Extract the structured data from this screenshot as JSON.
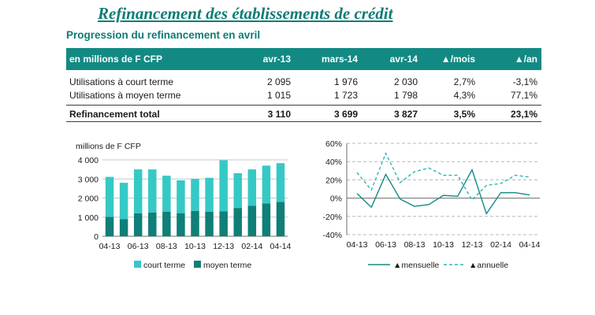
{
  "title": "Refinancement des établissements de crédit",
  "subtitle": "Progression du refinancement en avril",
  "table": {
    "headers": [
      "en millions de F CFP",
      "avr-13",
      "mars-14",
      "avr-14",
      "▲/mois",
      "▲/an"
    ],
    "rows": [
      {
        "label": "Utilisations à court terme",
        "values": [
          "2 095",
          "1 976",
          "2 030",
          "2,7%",
          "-3,1%"
        ],
        "bold": false
      },
      {
        "label": "Utilisations à moyen terme",
        "values": [
          "1 015",
          "1 723",
          "1 798",
          "4,3%",
          "77,1%"
        ],
        "bold": false
      },
      {
        "label": "Refinancement total",
        "values": [
          "3 110",
          "3 699",
          "3 827",
          "3,5%",
          "23,1%"
        ],
        "bold": true
      }
    ],
    "colors": {
      "header_bg": "#128a83",
      "header_text": "#ffffff",
      "title": "#0d7c74"
    }
  },
  "chart_data": [
    {
      "type": "bar",
      "stacked": true,
      "ylabel": "millions de F CFP",
      "ylim": [
        0,
        4000
      ],
      "yticks": [
        0,
        1000,
        2000,
        3000,
        4000
      ],
      "ytick_labels": [
        "0",
        "1 000",
        "2 000",
        "3 000",
        "4 000"
      ],
      "categories": [
        "04-13",
        "05-13",
        "06-13",
        "07-13",
        "08-13",
        "09-13",
        "10-13",
        "11-13",
        "12-13",
        "01-14",
        "02-14",
        "03-14",
        "04-14"
      ],
      "xtick_labels": [
        "04-13",
        "",
        "06-13",
        "",
        "08-13",
        "",
        "10-13",
        "",
        "12-13",
        "",
        "02-14",
        "",
        "04-14"
      ],
      "series": [
        {
          "name": "moyen terme",
          "color": "#0f7f77",
          "values": [
            1015,
            900,
            1200,
            1250,
            1290,
            1210,
            1330,
            1290,
            1300,
            1480,
            1600,
            1723,
            1798
          ]
        },
        {
          "name": "court terme",
          "color": "#35c9c6",
          "values": [
            2095,
            1900,
            2300,
            2250,
            1880,
            1720,
            1670,
            1770,
            2680,
            1820,
            1900,
            1976,
            2030
          ]
        }
      ],
      "legend": "bottom",
      "grid": true
    },
    {
      "type": "line",
      "ylim": [
        -40,
        60
      ],
      "yticks": [
        -40,
        -20,
        0,
        20,
        40,
        60
      ],
      "ytick_labels": [
        "-40%",
        "-20%",
        "0%",
        "20%",
        "40%",
        "60%"
      ],
      "categories": [
        "04-13",
        "05-13",
        "06-13",
        "07-13",
        "08-13",
        "09-13",
        "10-13",
        "11-13",
        "12-13",
        "01-14",
        "02-14",
        "03-14",
        "04-14"
      ],
      "xtick_labels": [
        "04-13",
        "",
        "06-13",
        "",
        "08-13",
        "",
        "10-13",
        "",
        "12-13",
        "",
        "02-14",
        "",
        "04-14"
      ],
      "series": [
        {
          "name": "▲mensuelle",
          "style": "solid",
          "color": "#138a83",
          "values": [
            5,
            -10,
            26,
            -1,
            -9,
            -7,
            3,
            2,
            31,
            -17,
            6,
            6,
            3.5
          ]
        },
        {
          "name": "▲annuelle",
          "style": "dashed",
          "color": "#2ab8b4",
          "values": [
            28,
            9,
            49,
            17,
            29,
            33,
            25,
            25,
            -2,
            14,
            16,
            25,
            23
          ]
        }
      ],
      "legend": "bottom",
      "grid": true
    }
  ]
}
